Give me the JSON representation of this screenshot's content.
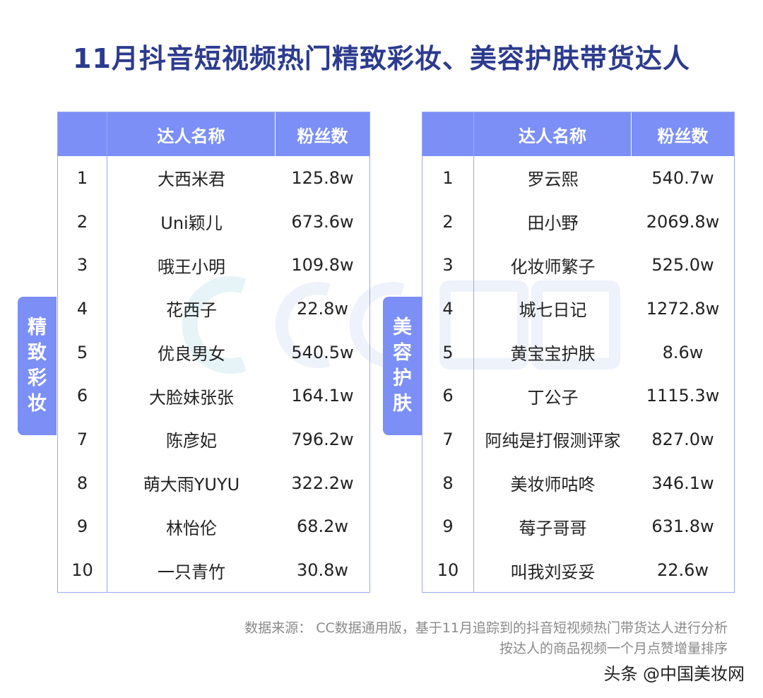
{
  "title": "11月抖音短视频热门精致彩妆、美容护肤带货达人",
  "watermark": "CC数据",
  "left": {
    "side_label": [
      "精",
      "致",
      "彩",
      "妆"
    ],
    "headers": [
      "",
      "达人名称",
      "粉丝数"
    ],
    "rows": [
      [
        "1",
        "大西米君",
        "125.8w"
      ],
      [
        "2",
        "Uni颖儿",
        "673.6w"
      ],
      [
        "3",
        "哦王小明",
        "109.8w"
      ],
      [
        "4",
        "花西子",
        "22.8w"
      ],
      [
        "5",
        "优良男女",
        "540.5w"
      ],
      [
        "6",
        "大脸妹张张",
        "164.1w"
      ],
      [
        "7",
        "陈彦妃",
        "796.2w"
      ],
      [
        "8",
        "萌大雨YUYU",
        "322.2w"
      ],
      [
        "9",
        "林怡伦",
        "68.2w"
      ],
      [
        "10",
        "一只青竹",
        "30.8w"
      ]
    ]
  },
  "right": {
    "side_label": [
      "美",
      "容",
      "护",
      "肤"
    ],
    "headers": [
      "",
      "达人名称",
      "粉丝数"
    ],
    "rows": [
      [
        "1",
        "罗云熙",
        "540.7w"
      ],
      [
        "2",
        "田小野",
        "2069.8w"
      ],
      [
        "3",
        "化妆师繁子",
        "525.0w"
      ],
      [
        "4",
        "城七日记",
        "1272.8w"
      ],
      [
        "5",
        "黄宝宝护肤",
        "8.6w"
      ],
      [
        "6",
        "丁公子",
        "1115.3w"
      ],
      [
        "7",
        "阿纯是打假测评家",
        "827.0w"
      ],
      [
        "8",
        "美妆师咕咚",
        "346.1w"
      ],
      [
        "9",
        "莓子哥哥",
        "631.8w"
      ],
      [
        "10",
        "叫我刘妥妥",
        "22.6w"
      ]
    ]
  },
  "source": [
    "数据来源： CC数据通用版，基于11月追踪到的抖音短视频热门带货达人进行分析",
    "按达人的商品视频一个月点赞增量排序"
  ],
  "brand": "头条 @中国美妆网",
  "colors": {
    "header": "#7b8ff6",
    "title": "#2c3b8e"
  }
}
